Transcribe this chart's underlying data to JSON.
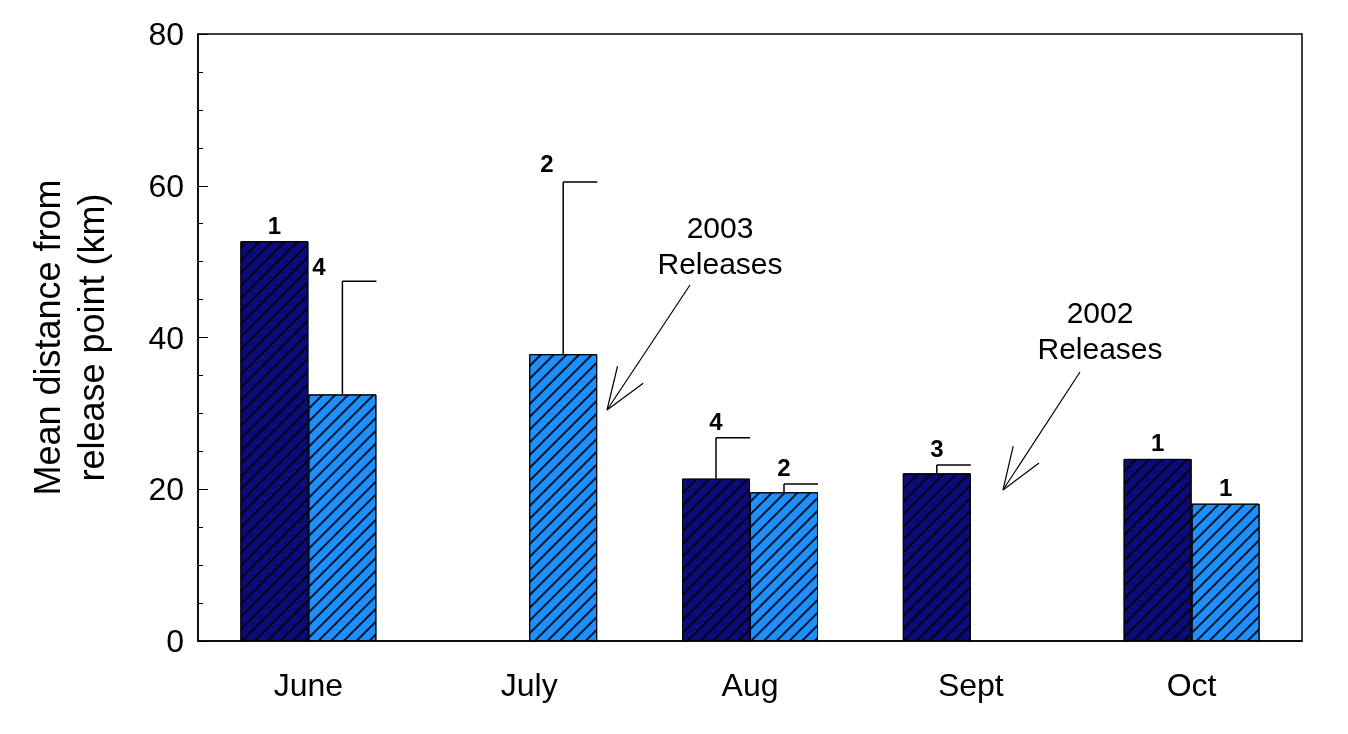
{
  "chart_data": {
    "type": "bar",
    "ylabel": "Mean distance from\nrelease point (km)",
    "categories": [
      "June",
      "July",
      "Aug",
      "Sept",
      "Oct"
    ],
    "series": [
      {
        "color": "#0b0b7a",
        "values": [
          52.7,
          null,
          21.4,
          22.1,
          24.0
        ],
        "errors": [
          null,
          null,
          [
            21.4,
            26.8
          ],
          [
            22.1,
            23.2
          ],
          null
        ]
      },
      {
        "color": "#1e8fff",
        "values": [
          32.5,
          37.8,
          19.6,
          null,
          18.1
        ],
        "errors": [
          [
            32.5,
            47.4
          ],
          [
            37.8,
            60.5
          ],
          [
            19.6,
            20.7
          ],
          null,
          null
        ]
      }
    ],
    "ylim": [
      0,
      80
    ],
    "yticks": [
      0,
      20,
      40,
      60,
      80
    ],
    "grid": false,
    "annotations": [
      "2003\nReleases",
      "2002\nReleases",
      "4",
      "2",
      {
        "text": "1",
        "x": "June",
        "y": 52.7
      },
      {
        "text": "4",
        "x": "Aug",
        "y": 21.4
      },
      {
        "text": "2",
        "x": "Aug",
        "y": 19.6
      },
      {
        "text": "3",
        "x": "Sept",
        "y": 22.1
      },
      {
        "text": "1",
        "x": "Oct",
        "y": 24.0
      },
      {
        "text": "1",
        "x": "Oct",
        "y": 18.1
      }
    ]
  }
}
